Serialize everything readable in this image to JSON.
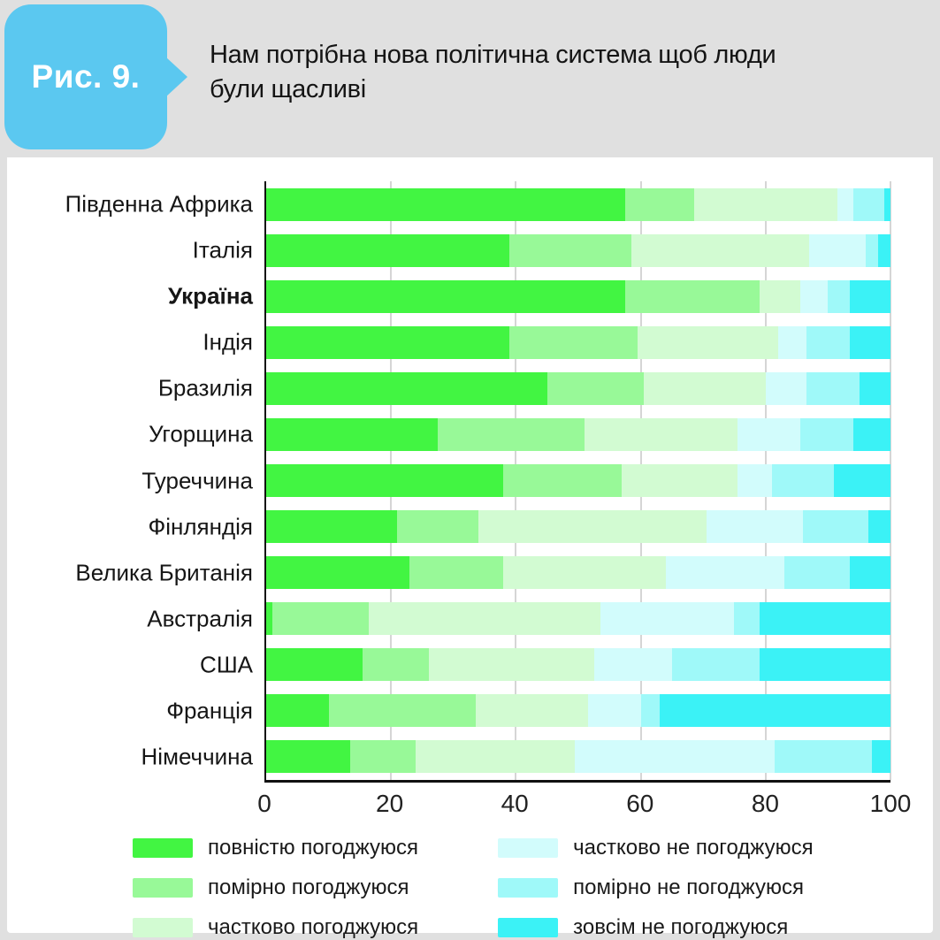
{
  "figure": {
    "badge_label": "Рис. 9.",
    "title_lines": [
      "Нам потрібна нова політична система щоб люди",
      "були щасливі"
    ],
    "accent_color": "#5bc8f0",
    "panel_color": "#ffffff",
    "background_color": "#e0e0e0"
  },
  "chart_data": {
    "type": "bar",
    "orientation": "horizontal",
    "stacked": true,
    "grid": true,
    "legend_position": "bottom",
    "xlim": [
      0,
      100
    ],
    "x_ticks": [
      0,
      20,
      40,
      60,
      80,
      100
    ],
    "categories": [
      "Південна Африка",
      "Італія",
      "Україна",
      "Індія",
      "Бразилія",
      "Угорщина",
      "Туреччина",
      "Фінляндія",
      "Велика Британія",
      "Австралія",
      "США",
      "Франція",
      "Німеччина"
    ],
    "emphasized_category": "Україна",
    "series": [
      {
        "name": "повністю погоджуюся",
        "color": "#42f542",
        "values": [
          57.5,
          39,
          57.5,
          39,
          45,
          27.5,
          38,
          21,
          23,
          1,
          15.5,
          10,
          13.5
        ]
      },
      {
        "name": "помірно погоджуюся",
        "color": "#98f998",
        "values": [
          11,
          19.5,
          21.5,
          20.5,
          15.5,
          23.5,
          19,
          13,
          15,
          15.5,
          10.5,
          23.5,
          10.5
        ]
      },
      {
        "name": "частково погоджуюся",
        "color": "#d2fbd2",
        "values": [
          23,
          28.5,
          6.5,
          22.5,
          19.5,
          24.5,
          18.5,
          36.5,
          26,
          37,
          26.5,
          18,
          25.5
        ]
      },
      {
        "name": "частково не погоджуюся",
        "color": "#d2fcfc",
        "values": [
          2.5,
          9,
          4.5,
          4.5,
          6.5,
          10,
          5.5,
          15.5,
          19,
          21.5,
          12.5,
          8.5,
          32
        ]
      },
      {
        "name": "помірно не погоджуюся",
        "color": "#9ff9f9",
        "values": [
          5,
          2,
          3.5,
          7,
          8.5,
          8.5,
          10,
          10.5,
          10.5,
          4,
          14,
          3,
          15.5
        ]
      },
      {
        "name": "зовсім не погоджуюся",
        "color": "#3bf2f6",
        "values": [
          1,
          2,
          6.5,
          6.5,
          5,
          6,
          9,
          3.5,
          6.5,
          21,
          21,
          37,
          3
        ]
      }
    ]
  }
}
